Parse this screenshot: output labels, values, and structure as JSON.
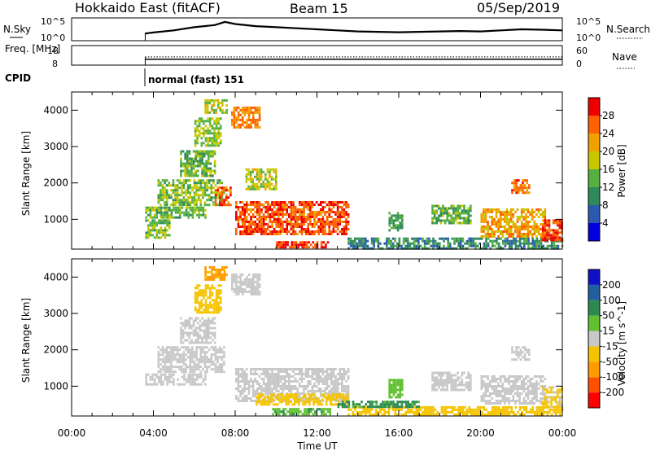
{
  "header": {
    "station": "Hokkaido East (fitACF)",
    "beam": "Beam 15",
    "date": "05/Sep/2019"
  },
  "colors": {
    "power_scale": [
      "#0000e0",
      "#2a5ab0",
      "#2e8a5a",
      "#55b040",
      "#c8c800",
      "#f0a000",
      "#ff6000",
      "#ee0000"
    ],
    "velocity_scale": [
      "#ff0000",
      "#ff5000",
      "#ff9a00",
      "#f5c400",
      "#c8c8c8",
      "#60c030",
      "#2a8a50",
      "#205ea0",
      "#1010c8"
    ]
  },
  "chart_data": [
    {
      "type": "line",
      "name": "summary-nsky-nsearch",
      "left_label": "N.Sky",
      "right_label": "N.Search",
      "left_ticks": [
        "10^5",
        "10^0"
      ],
      "right_ticks": [
        "10^5",
        "10^0"
      ],
      "x_range_hours": [
        0,
        24
      ],
      "data_start_hour": 3.6,
      "values_note": "",
      "series": [
        {
          "style": "solid",
          "x": [
            3.6,
            4,
            5,
            6,
            7,
            7.5,
            8,
            9,
            10,
            11,
            12,
            13,
            14,
            15,
            16,
            17,
            18,
            19,
            20,
            21,
            22,
            23,
            24
          ],
          "y": [
            0.3,
            0.35,
            0.45,
            0.6,
            0.7,
            0.85,
            0.75,
            0.65,
            0.6,
            0.55,
            0.5,
            0.45,
            0.4,
            0.38,
            0.36,
            0.38,
            0.4,
            0.42,
            0.4,
            0.45,
            0.5,
            0.48,
            0.45
          ]
        },
        {
          "style": "dotted",
          "x": [
            3.6,
            24
          ],
          "y": [
            0.05,
            0.05
          ]
        }
      ]
    },
    {
      "type": "line",
      "name": "summary-freq-nave",
      "left_label": "Freq. [MHz]",
      "right_label": "Nave",
      "left_ticks": [
        "18",
        "8"
      ],
      "right_ticks": [
        "60",
        "0"
      ],
      "x_range_hours": [
        0,
        24
      ],
      "series": [
        {
          "style": "solid",
          "x": [
            3.6,
            24
          ],
          "y": [
            11,
            11
          ]
        },
        {
          "style": "dotted",
          "x": [
            3.6,
            24
          ],
          "y": [
            12.2,
            12.2
          ]
        }
      ]
    },
    {
      "type": "table",
      "name": "cpid",
      "label": "CPID",
      "entries": [
        {
          "start_hour": 3.6,
          "text": "normal (fast) 151"
        }
      ]
    },
    {
      "type": "heatmap",
      "name": "power",
      "ylabel": "Slant Range [km]",
      "y_ticks": [
        1000,
        2000,
        3000,
        4000
      ],
      "y_range": [
        180,
        4500
      ],
      "x_range_hours": [
        0,
        24
      ],
      "colorbar": {
        "label": "Power [dB]",
        "ticks": [
          "4",
          "8",
          "12",
          "16",
          "20",
          "24",
          "28"
        ],
        "range": [
          0,
          32
        ]
      },
      "regions": [
        {
          "x0": 3.6,
          "x1": 6.5,
          "y0": 1050,
          "y1": 1350,
          "v": 14
        },
        {
          "x0": 4.2,
          "x1": 7.5,
          "y0": 1400,
          "y1": 2100,
          "v": 15
        },
        {
          "x0": 5.3,
          "x1": 7.0,
          "y0": 2200,
          "y1": 2900,
          "v": 14
        },
        {
          "x0": 6.0,
          "x1": 7.3,
          "y0": 3000,
          "y1": 3800,
          "v": 16
        },
        {
          "x0": 6.5,
          "x1": 7.6,
          "y0": 3900,
          "y1": 4300,
          "v": 17
        },
        {
          "x0": 7.0,
          "x1": 7.8,
          "y0": 1400,
          "y1": 1900,
          "v": 26
        },
        {
          "x0": 7.8,
          "x1": 9.2,
          "y0": 3500,
          "y1": 4100,
          "v": 24
        },
        {
          "x0": 8.5,
          "x1": 10.0,
          "y0": 1800,
          "y1": 2400,
          "v": 18
        },
        {
          "x0": 8.0,
          "x1": 13.5,
          "y0": 600,
          "y1": 1500,
          "v": 27
        },
        {
          "x0": 3.6,
          "x1": 4.8,
          "y0": 500,
          "y1": 1000,
          "v": 15
        },
        {
          "x0": 10.0,
          "x1": 12.5,
          "y0": 250,
          "y1": 400,
          "v": 28
        },
        {
          "x0": 13.5,
          "x1": 24.0,
          "y0": 200,
          "y1": 500,
          "v": 10
        },
        {
          "x0": 15.5,
          "x1": 16.2,
          "y0": 700,
          "y1": 1200,
          "v": 12
        },
        {
          "x0": 17.6,
          "x1": 19.5,
          "y0": 900,
          "y1": 1400,
          "v": 13
        },
        {
          "x0": 20.0,
          "x1": 23.2,
          "y0": 500,
          "y1": 1300,
          "v": 22
        },
        {
          "x0": 21.5,
          "x1": 22.4,
          "y0": 1700,
          "y1": 2100,
          "v": 25
        },
        {
          "x0": 23.0,
          "x1": 24.0,
          "y0": 400,
          "y1": 1000,
          "v": 27
        }
      ]
    },
    {
      "type": "heatmap",
      "name": "velocity",
      "ylabel": "Slant Range [km]",
      "y_ticks": [
        1000,
        2000,
        3000,
        4000
      ],
      "y_range": [
        180,
        4500
      ],
      "x_range_hours": [
        0,
        24
      ],
      "xlabel": "Time UT",
      "x_ticks": [
        "00:00",
        "04:00",
        "08:00",
        "12:00",
        "16:00",
        "20:00",
        "00:00"
      ],
      "colorbar": {
        "label": "Velocity [m s^-1]",
        "ticks": [
          "-200",
          "-100",
          "-50",
          "-15",
          "15",
          "50",
          "100",
          "200"
        ],
        "range": [
          -250,
          250
        ]
      },
      "regions": [
        {
          "x0": 3.6,
          "x1": 6.5,
          "y0": 1050,
          "y1": 1350,
          "v": 0
        },
        {
          "x0": 4.2,
          "x1": 7.5,
          "y0": 1400,
          "y1": 2100,
          "v": 0
        },
        {
          "x0": 5.3,
          "x1": 7.0,
          "y0": 2200,
          "y1": 2900,
          "v": 0
        },
        {
          "x0": 6.0,
          "x1": 7.3,
          "y0": 3000,
          "y1": 3800,
          "v": -30
        },
        {
          "x0": 6.5,
          "x1": 7.6,
          "y0": 3900,
          "y1": 4300,
          "v": -60
        },
        {
          "x0": 7.8,
          "x1": 9.2,
          "y0": 3500,
          "y1": 4100,
          "v": 0
        },
        {
          "x0": 8.0,
          "x1": 13.5,
          "y0": 600,
          "y1": 1500,
          "v": 0
        },
        {
          "x0": 9.0,
          "x1": 13.5,
          "y0": 500,
          "y1": 800,
          "v": -30
        },
        {
          "x0": 9.8,
          "x1": 12.6,
          "y0": 250,
          "y1": 400,
          "v": 40
        },
        {
          "x0": 13.5,
          "x1": 24.0,
          "y0": 220,
          "y1": 450,
          "v": -30
        },
        {
          "x0": 13.0,
          "x1": 17.0,
          "y0": 400,
          "y1": 600,
          "v": 60
        },
        {
          "x0": 15.5,
          "x1": 16.2,
          "y0": 700,
          "y1": 1200,
          "v": 30
        },
        {
          "x0": 17.6,
          "x1": 19.5,
          "y0": 900,
          "y1": 1400,
          "v": 0
        },
        {
          "x0": 20.0,
          "x1": 23.2,
          "y0": 500,
          "y1": 1300,
          "v": 0
        },
        {
          "x0": 21.5,
          "x1": 22.4,
          "y0": 1700,
          "y1": 2100,
          "v": 0
        },
        {
          "x0": 23.0,
          "x1": 24.0,
          "y0": 400,
          "y1": 1000,
          "v": -20
        }
      ]
    }
  ]
}
